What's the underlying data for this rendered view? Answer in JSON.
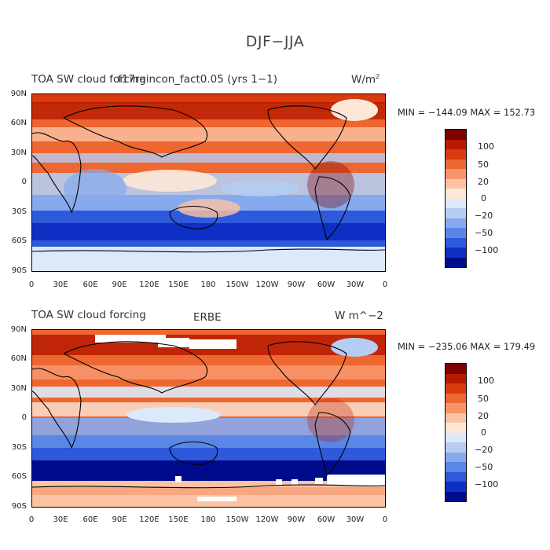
{
  "figure_title": "DJF−JJA",
  "panels": [
    {
      "left_title": "TOA SW cloud forcing",
      "center_title": "f17raincon_fact0.05 (yrs 1−1)",
      "units_base": "W/m",
      "units_sup": "2",
      "minmax": "MIN = −144.09  MAX = 152.73"
    },
    {
      "left_title": "TOA SW cloud forcing",
      "center_title": "ERBE",
      "units_base": "W m^−2",
      "units_sup": "",
      "minmax": "MIN = −235.06  MAX = 179.49"
    }
  ],
  "axes": {
    "lat_labels": [
      "90N",
      "60N",
      "30N",
      "0",
      "30S",
      "60S",
      "90S"
    ],
    "lon_labels": [
      "0",
      "30E",
      "60E",
      "90E",
      "120E",
      "150E",
      "180",
      "150W",
      "120W",
      "90W",
      "60W",
      "30W",
      "0"
    ]
  },
  "colorbar": {
    "labels": [
      "100",
      "50",
      "20",
      "0",
      "−20",
      "−50",
      "−100"
    ],
    "colors_top_to_bottom": [
      "#7f0000",
      "#b81a00",
      "#d93b0e",
      "#ee6630",
      "#f7956a",
      "#fbc3a4",
      "#fde8d8",
      "#dce9fa",
      "#b5cdf3",
      "#86aaed",
      "#5a86e6",
      "#2f59db",
      "#0e2fc4",
      "#000b8c"
    ]
  }
}
